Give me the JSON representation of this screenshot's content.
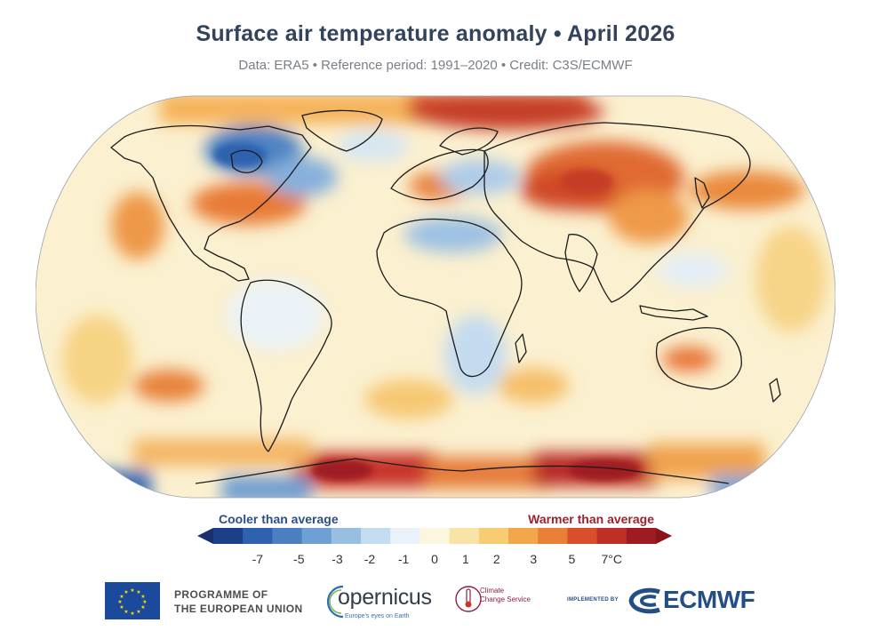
{
  "header": {
    "title": "Surface air temperature anomaly • April 2026",
    "subtitle": "Data: ERA5 • Reference period: 1991–2020 • Credit: C3S/ECMWF"
  },
  "map": {
    "projection": "Robinson",
    "variable": "Surface air temperature anomaly",
    "outline_color": "#1a1a1a"
  },
  "legend": {
    "cool_label": "Cooler than average",
    "warm_label": "Warmer than average",
    "ticks": [
      "-7",
      "-5",
      "-3",
      "-2",
      "-1",
      "0",
      "1",
      "2",
      "3",
      "5",
      "7°C"
    ],
    "colors": [
      "#1d3f8a",
      "#2f62ae",
      "#4a80c0",
      "#6fa0d3",
      "#98bfe2",
      "#c4dcef",
      "#e9f2f8",
      "#fbf6de",
      "#f9e4a8",
      "#f7cc72",
      "#f2a74a",
      "#e97e36",
      "#d94f2b",
      "#bf2f26",
      "#9e1b22"
    ],
    "arrow_low_color": "#1a2f6e",
    "arrow_high_color": "#8a1219"
  },
  "logos": {
    "eu": {
      "line1": "PROGRAMME OF",
      "line2": "THE EUROPEAN UNION"
    },
    "copernicus": {
      "name": "opernicus",
      "tagline": "Europe's eyes on Earth"
    },
    "c3s": {
      "line1": "Climate",
      "line2": "Change Service"
    },
    "ecmwf": {
      "implemented": "IMPLEMENTED BY",
      "name": "ECMWF"
    }
  }
}
